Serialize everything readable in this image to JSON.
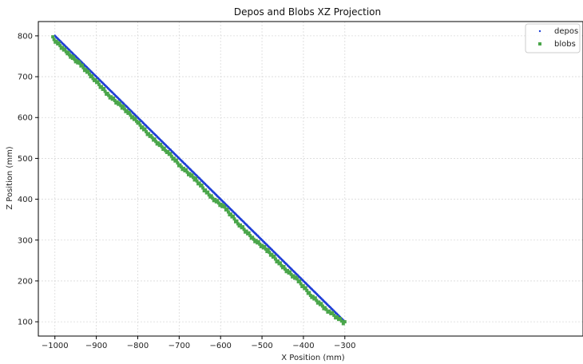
{
  "chart_data": {
    "type": "scatter",
    "title": "Depos and Blobs XZ Projection",
    "xlabel": "X Position (mm)",
    "ylabel": "Z Position (mm)",
    "xlim": [
      -1040,
      275
    ],
    "ylim": [
      65,
      835
    ],
    "xticks": [
      -1000,
      -900,
      -800,
      -700,
      -600,
      -500,
      -400,
      -300
    ],
    "xtick_labels": [
      "−1000",
      "−900",
      "−800",
      "−700",
      "−600",
      "−500",
      "−400",
      "−300"
    ],
    "yticks": [
      100,
      200,
      300,
      400,
      500,
      600,
      700,
      800
    ],
    "ytick_labels": [
      "100",
      "200",
      "300",
      "400",
      "500",
      "600",
      "700",
      "800"
    ],
    "grid": true,
    "legend_position": "top-right",
    "series": [
      {
        "name": "depos",
        "marker": "dot",
        "color": "#1f3fd6",
        "x": [
          -1000,
          -965,
          -930,
          -895,
          -860,
          -825,
          -790,
          -755,
          -720,
          -685,
          -650,
          -615,
          -580,
          -545,
          -510,
          -475,
          -440,
          -405,
          -370,
          -335,
          -300
        ],
        "y": [
          800,
          765,
          730,
          695,
          660,
          625,
          590,
          555,
          520,
          485,
          450,
          415,
          380,
          345,
          310,
          275,
          240,
          205,
          170,
          135,
          100
        ]
      },
      {
        "name": "blobs",
        "marker": "square",
        "color": "#4aa64a",
        "x": [
          -1005,
          -970,
          -940,
          -905,
          -870,
          -835,
          -800,
          -765,
          -730,
          -695,
          -660,
          -625,
          -590,
          -555,
          -520,
          -485,
          -450,
          -415,
          -380,
          -345,
          -300
        ],
        "y": [
          798,
          762,
          735,
          698,
          658,
          628,
          592,
          553,
          522,
          483,
          452,
          411,
          383,
          342,
          306,
          277,
          238,
          207,
          167,
          134,
          100
        ]
      }
    ]
  }
}
